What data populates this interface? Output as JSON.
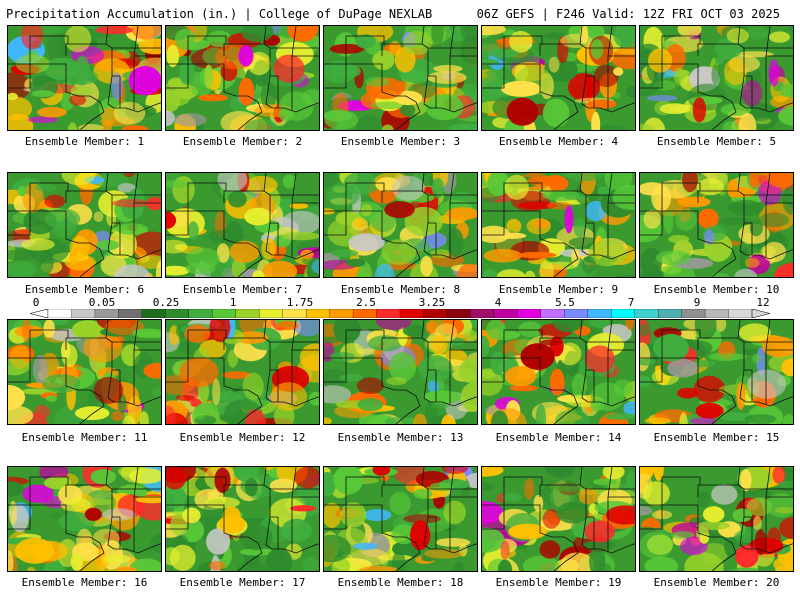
{
  "header": {
    "title": "Precipitation Accumulation (in.) | College of DuPage NEXLAB",
    "run_info": "06Z GEFS | F246 Valid: 12Z FRI OCT 03 2025"
  },
  "colorbar": {
    "tick_labels": [
      "0",
      "0.05",
      "0.25",
      "1",
      "1.75",
      "2.5",
      "3.25",
      "4",
      "5.5",
      "7",
      "9",
      "12"
    ],
    "colors": [
      "#ffffff",
      "#c8c8c8",
      "#9a9a9a",
      "#707070",
      "#1e6e1e",
      "#2e8b2e",
      "#3fae3f",
      "#58c838",
      "#9ad22a",
      "#e6ee30",
      "#ffe14a",
      "#ffc000",
      "#ff9a00",
      "#ff6a00",
      "#ff2a2a",
      "#e00000",
      "#b00000",
      "#880010",
      "#a0106a",
      "#c000a0",
      "#e000e0",
      "#c070ff",
      "#7a8aff",
      "#40b8ff",
      "#00ffff",
      "#40d0d0",
      "#50b0b0",
      "#909090",
      "#b8b8b8",
      "#d8d8d8"
    ]
  },
  "panels": [
    {
      "label": "Ensemble Member: 1"
    },
    {
      "label": "Ensemble Member: 2"
    },
    {
      "label": "Ensemble Member: 3"
    },
    {
      "label": "Ensemble Member: 4"
    },
    {
      "label": "Ensemble Member: 5"
    },
    {
      "label": "Ensemble Member: 6"
    },
    {
      "label": "Ensemble Member: 7"
    },
    {
      "label": "Ensemble Member: 8"
    },
    {
      "label": "Ensemble Member: 9"
    },
    {
      "label": "Ensemble Member: 10"
    },
    {
      "label": "Ensemble Member: 11"
    },
    {
      "label": "Ensemble Member: 12"
    },
    {
      "label": "Ensemble Member: 13"
    },
    {
      "label": "Ensemble Member: 14"
    },
    {
      "label": "Ensemble Member: 15"
    },
    {
      "label": "Ensemble Member: 16"
    },
    {
      "label": "Ensemble Member: 17"
    },
    {
      "label": "Ensemble Member: 18"
    },
    {
      "label": "Ensemble Member: 19"
    },
    {
      "label": "Ensemble Member: 20"
    }
  ]
}
